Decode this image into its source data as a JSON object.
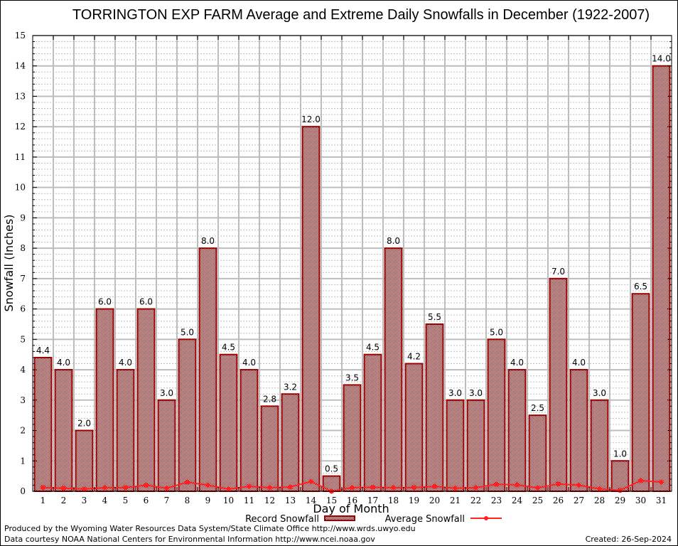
{
  "chart_data": {
    "type": "bar",
    "title": "TORRINGTON EXP FARM Average and Extreme Daily Snowfalls in December (1922-2007)",
    "xlabel": "Day of Month",
    "ylabel": "Snowfall (Inches)",
    "ylim": [
      0,
      15
    ],
    "yticks": [
      "0",
      "1",
      "2",
      "3",
      "4",
      "5",
      "6",
      "7",
      "8",
      "9",
      "10",
      "11",
      "12",
      "13",
      "14",
      "15"
    ],
    "grid": true,
    "categories": [
      "1",
      "2",
      "3",
      "4",
      "5",
      "6",
      "7",
      "8",
      "9",
      "10",
      "11",
      "12",
      "13",
      "14",
      "15",
      "16",
      "17",
      "18",
      "19",
      "20",
      "21",
      "22",
      "23",
      "24",
      "25",
      "26",
      "27",
      "28",
      "29",
      "30",
      "31"
    ],
    "series": [
      {
        "name": "Record Snowfall",
        "type": "bar",
        "color": "#990000",
        "values": [
          4.4,
          4.0,
          2.0,
          6.0,
          4.0,
          6.0,
          3.0,
          5.0,
          8.0,
          4.5,
          4.0,
          2.8,
          3.2,
          12.0,
          0.5,
          3.5,
          4.5,
          8.0,
          4.2,
          5.5,
          3.0,
          3.0,
          5.0,
          4.0,
          2.5,
          7.0,
          4.0,
          3.0,
          1.0,
          6.5,
          14.0
        ],
        "labels": [
          "4.4",
          "4.0",
          "2.0",
          "6.0",
          "4.0",
          "6.0",
          "3.0",
          "5.0",
          "8.0",
          "4.5",
          "4.0",
          "2.8",
          "3.2",
          "12.0",
          "0.5",
          "3.5",
          "4.5",
          "8.0",
          "4.2",
          "5.5",
          "3.0",
          "3.0",
          "5.0",
          "4.0",
          "2.5",
          "7.0",
          "4.0",
          "3.0",
          "1.0",
          "6.5",
          "14.0"
        ]
      },
      {
        "name": "Average Snowfall",
        "type": "line",
        "color": "#ff2020",
        "values": [
          0.12,
          0.1,
          0.07,
          0.12,
          0.12,
          0.2,
          0.1,
          0.3,
          0.2,
          0.07,
          0.16,
          0.12,
          0.14,
          0.32,
          0.0,
          0.12,
          0.13,
          0.12,
          0.12,
          0.16,
          0.1,
          0.12,
          0.23,
          0.21,
          0.11,
          0.24,
          0.2,
          0.08,
          0.03,
          0.35,
          0.3
        ]
      }
    ],
    "legend": {
      "placement": "bottom-center",
      "entries": [
        "Record Snowfall",
        "Average Snowfall"
      ]
    }
  },
  "footer": {
    "line1": "Produced by the Wyoming Water Resources Data System/State Climate Office http://www.wrds.uwyo.edu",
    "line2": "Data courtesy NOAA National Centers for Environmental Information http://www.ncei.noaa.gov",
    "created": "Created: 26-Sep-2024"
  }
}
